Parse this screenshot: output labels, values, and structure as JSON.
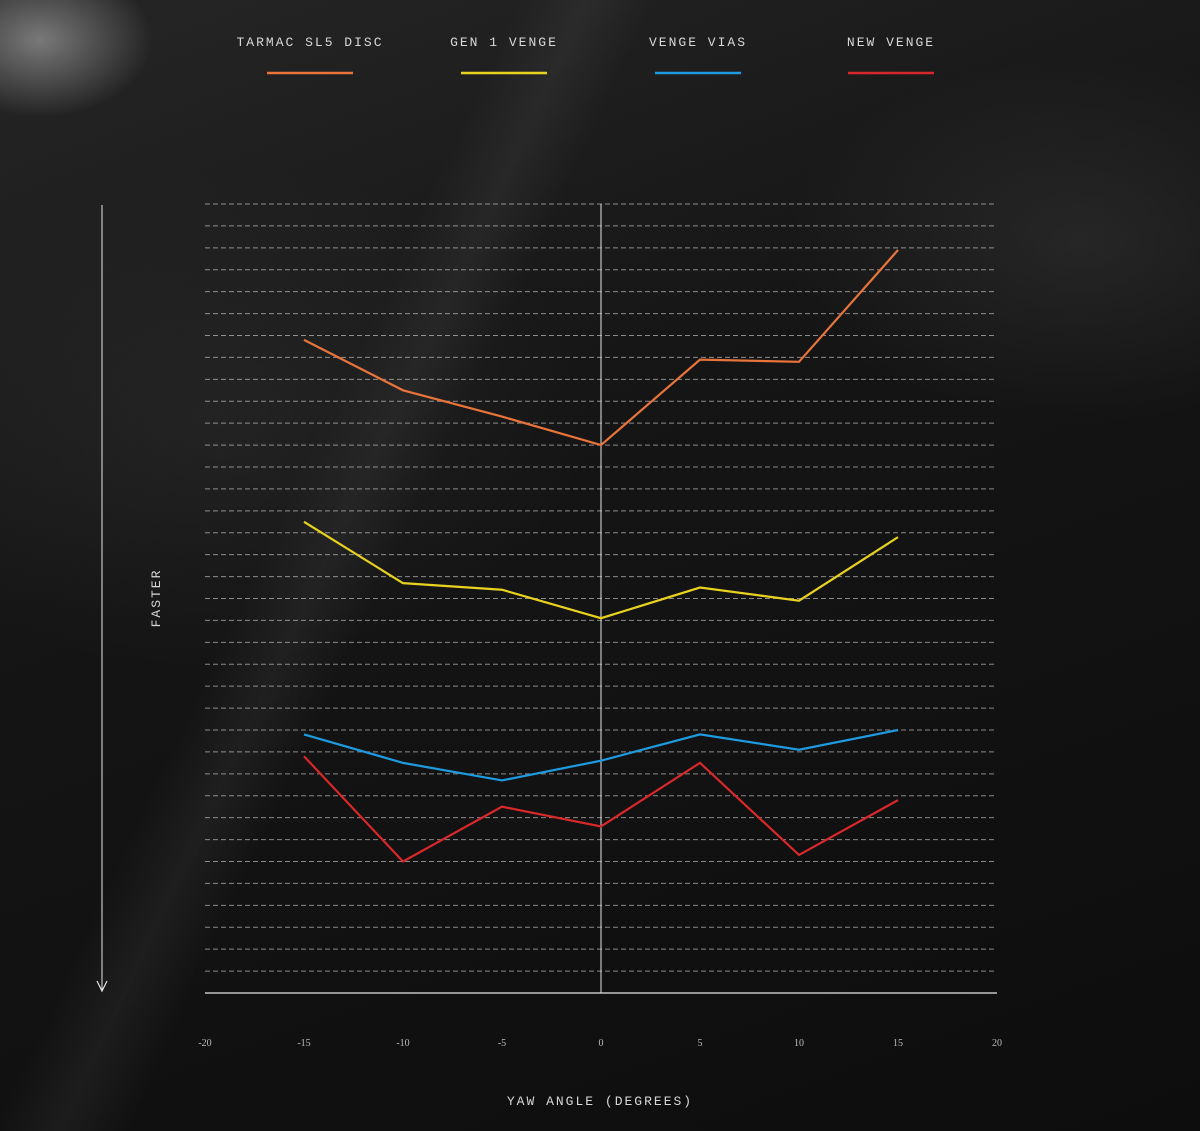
{
  "chart_data": {
    "type": "line",
    "xlabel": "YAW ANGLE (DEGREES)",
    "ylabel": "FASTER",
    "xlim": [
      -20,
      20
    ],
    "ylim": [
      0,
      36
    ],
    "y_inverted": true,
    "x_ticks": [
      -20,
      -15,
      -10,
      -5,
      0,
      5,
      10,
      15,
      20
    ],
    "y_tick_labels_shown": false,
    "grid": "horizontal dashed",
    "legend_position": "top",
    "x": [
      -15,
      -10,
      -5,
      0,
      5,
      10,
      15
    ],
    "series": [
      {
        "name": "TARMAC SL5 DISC",
        "color": "#e8743b",
        "values": [
          29.8,
          27.5,
          26.3,
          25.0,
          28.9,
          28.8,
          33.9
        ]
      },
      {
        "name": "GEN 1 VENGE",
        "color": "#e9d21f",
        "values": [
          21.5,
          18.7,
          18.4,
          17.1,
          18.5,
          17.9,
          20.8
        ]
      },
      {
        "name": "VENGE VIAS",
        "color": "#1e9be0",
        "values": [
          11.8,
          10.5,
          9.7,
          10.6,
          11.8,
          11.1,
          12.0
        ]
      },
      {
        "name": "NEW VENGE",
        "color": "#d9282a",
        "values": [
          10.8,
          6.0,
          8.5,
          7.6,
          10.5,
          6.3,
          8.8
        ]
      }
    ]
  }
}
